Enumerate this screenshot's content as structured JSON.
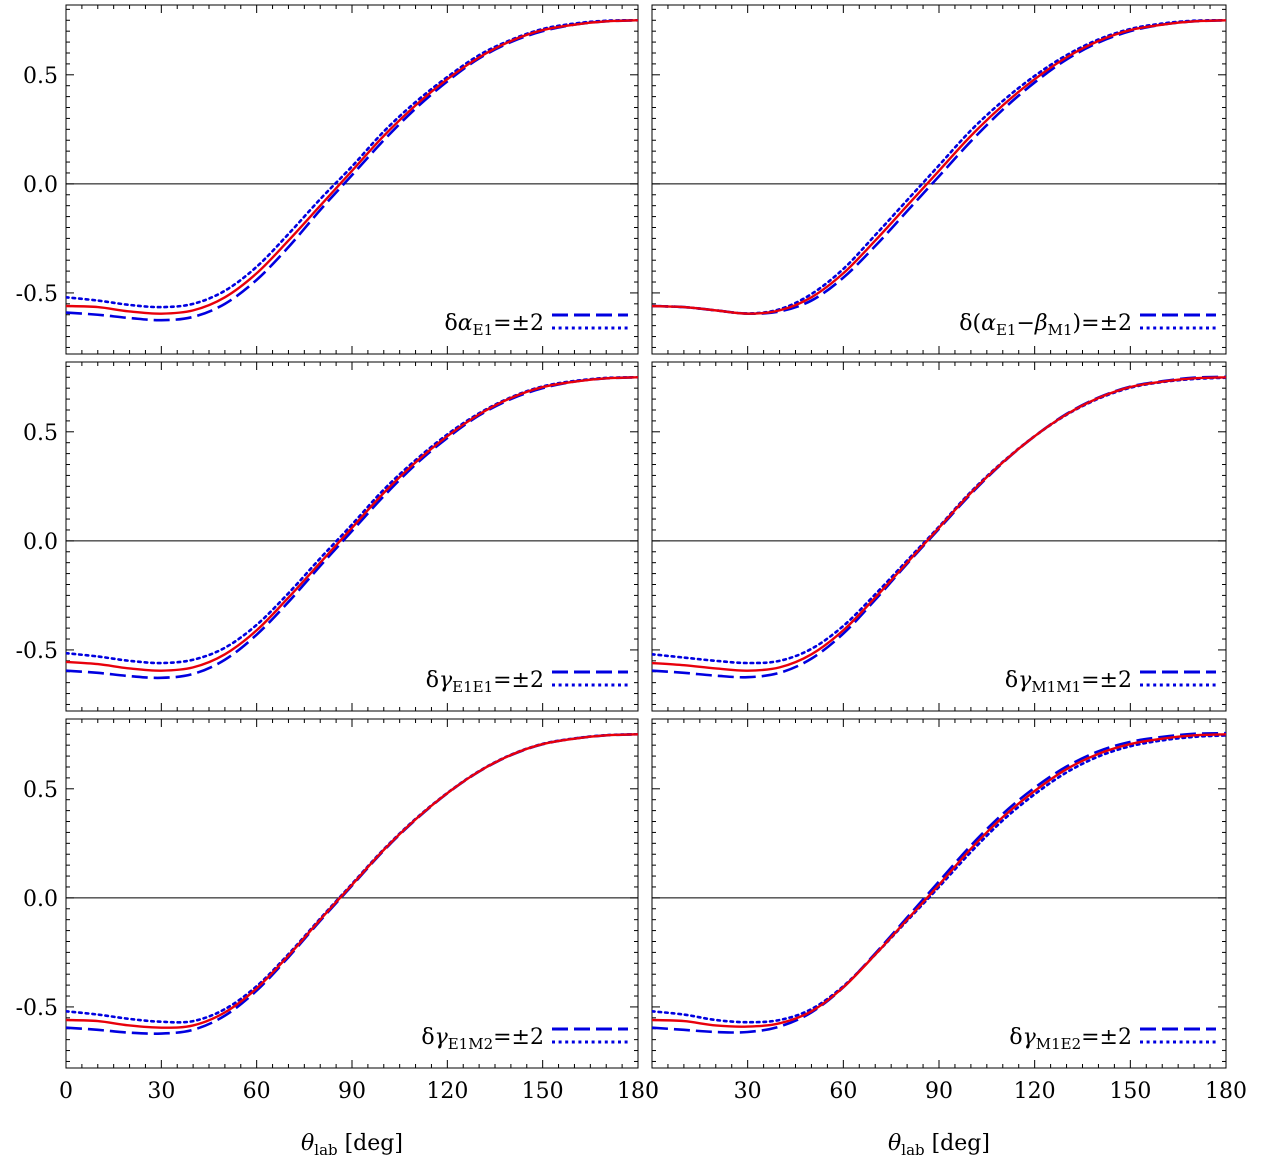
{
  "colors": {
    "central": "#e8000b",
    "variation": "#0000e0",
    "axis": "#000000"
  },
  "chart_data": {
    "type": "line",
    "layout": "3x2 grid of panels sharing axes",
    "xlabel": {
      "symbol": "θ",
      "sub": "lab",
      "unit": "[deg]"
    },
    "xlim": [
      0,
      180
    ],
    "ylim": [
      -0.78,
      0.82
    ],
    "xticks": [
      0,
      30,
      60,
      90,
      120,
      150,
      180
    ],
    "xtick_labels_left": [
      "0",
      "30",
      "60",
      "90",
      "120",
      "150",
      "180"
    ],
    "xtick_labels_right": [
      "0",
      "30",
      "60",
      "90",
      "120",
      "150",
      "180"
    ],
    "yticks": [
      -0.5,
      0.0,
      0.5
    ],
    "ytick_labels": [
      "-0.5",
      "0.0",
      "0.5"
    ],
    "zero_line": true,
    "line_styles": {
      "central": "solid",
      "plus": "dashed",
      "minus": "dotted"
    },
    "x": [
      0,
      10,
      20,
      30,
      40,
      50,
      60,
      70,
      80,
      90,
      100,
      110,
      120,
      130,
      140,
      150,
      160,
      170,
      180
    ],
    "panels": [
      {
        "legend": {
          "prefix": "δ",
          "symbol": "α",
          "sub": "E1",
          "suffix": "",
          "value": "=±2"
        },
        "series": [
          {
            "style": "central",
            "values": [
              -0.56,
              -0.565,
              -0.585,
              -0.595,
              -0.58,
              -0.52,
              -0.41,
              -0.26,
              -0.1,
              0.06,
              0.22,
              0.36,
              0.48,
              0.58,
              0.655,
              0.705,
              0.73,
              0.745,
              0.75
            ]
          },
          {
            "style": "dashed",
            "values": [
              -0.59,
              -0.6,
              -0.615,
              -0.625,
              -0.61,
              -0.55,
              -0.44,
              -0.29,
              -0.12,
              0.04,
              0.2,
              0.345,
              0.47,
              0.575,
              0.65,
              0.7,
              0.73,
              0.745,
              0.75
            ]
          },
          {
            "style": "dotted",
            "values": [
              -0.52,
              -0.535,
              -0.555,
              -0.565,
              -0.55,
              -0.49,
              -0.38,
              -0.23,
              -0.07,
              0.08,
              0.24,
              0.375,
              0.49,
              0.59,
              0.66,
              0.71,
              0.735,
              0.748,
              0.75
            ]
          }
        ]
      },
      {
        "legend": {
          "prefix": "δ(",
          "symbol": "α",
          "sub": "E1",
          "minus_symbol": "β",
          "minus_sub": "M1",
          "suffix": ")",
          "value": "=±2"
        },
        "series": [
          {
            "style": "central",
            "values": [
              -0.56,
              -0.565,
              -0.58,
              -0.595,
              -0.58,
              -0.52,
              -0.41,
              -0.26,
              -0.1,
              0.06,
              0.22,
              0.36,
              0.48,
              0.58,
              0.655,
              0.705,
              0.73,
              0.745,
              0.75
            ]
          },
          {
            "style": "dashed",
            "values": [
              -0.56,
              -0.565,
              -0.58,
              -0.595,
              -0.585,
              -0.535,
              -0.43,
              -0.285,
              -0.125,
              0.035,
              0.195,
              0.34,
              0.465,
              0.57,
              0.648,
              0.7,
              0.73,
              0.745,
              0.75
            ]
          },
          {
            "style": "dotted",
            "values": [
              -0.56,
              -0.565,
              -0.58,
              -0.594,
              -0.575,
              -0.505,
              -0.39,
              -0.235,
              -0.075,
              0.085,
              0.245,
              0.38,
              0.495,
              0.59,
              0.662,
              0.71,
              0.735,
              0.748,
              0.75
            ]
          }
        ]
      },
      {
        "legend": {
          "prefix": "δ",
          "symbol": "γ",
          "sub": "E1E1",
          "suffix": "",
          "value": "=±2"
        },
        "series": [
          {
            "style": "central",
            "values": [
              -0.555,
              -0.565,
              -0.585,
              -0.595,
              -0.58,
              -0.52,
              -0.41,
              -0.26,
              -0.1,
              0.06,
              0.22,
              0.36,
              0.48,
              0.58,
              0.655,
              0.705,
              0.73,
              0.745,
              0.75
            ]
          },
          {
            "style": "dashed",
            "values": [
              -0.595,
              -0.605,
              -0.62,
              -0.628,
              -0.61,
              -0.545,
              -0.43,
              -0.28,
              -0.115,
              0.045,
              0.205,
              0.35,
              0.472,
              0.575,
              0.65,
              0.7,
              0.73,
              0.745,
              0.75
            ]
          },
          {
            "style": "dotted",
            "values": [
              -0.515,
              -0.53,
              -0.55,
              -0.56,
              -0.545,
              -0.49,
              -0.385,
              -0.24,
              -0.08,
              0.075,
              0.235,
              0.37,
              0.488,
              0.585,
              0.658,
              0.708,
              0.733,
              0.747,
              0.75
            ]
          }
        ]
      },
      {
        "legend": {
          "prefix": "δ",
          "symbol": "γ",
          "sub": "M1M1",
          "suffix": "",
          "value": "=±2"
        },
        "series": [
          {
            "style": "central",
            "values": [
              -0.56,
              -0.57,
              -0.585,
              -0.595,
              -0.58,
              -0.52,
              -0.41,
              -0.26,
              -0.1,
              0.06,
              0.22,
              0.36,
              0.48,
              0.58,
              0.655,
              0.705,
              0.73,
              0.745,
              0.75
            ]
          },
          {
            "style": "dashed",
            "values": [
              -0.595,
              -0.605,
              -0.618,
              -0.625,
              -0.605,
              -0.54,
              -0.425,
              -0.27,
              -0.105,
              0.055,
              0.215,
              0.358,
              0.48,
              0.582,
              0.657,
              0.707,
              0.732,
              0.748,
              0.752
            ]
          },
          {
            "style": "dotted",
            "values": [
              -0.52,
              -0.535,
              -0.55,
              -0.56,
              -0.55,
              -0.495,
              -0.39,
              -0.245,
              -0.09,
              0.065,
              0.225,
              0.362,
              0.48,
              0.578,
              0.652,
              0.702,
              0.728,
              0.742,
              0.748
            ]
          }
        ]
      },
      {
        "legend": {
          "prefix": "δ",
          "symbol": "γ",
          "sub": "E1M2",
          "suffix": "",
          "value": "=±2"
        },
        "series": [
          {
            "style": "central",
            "values": [
              -0.56,
              -0.565,
              -0.585,
              -0.595,
              -0.585,
              -0.525,
              -0.415,
              -0.265,
              -0.1,
              0.06,
              0.22,
              0.36,
              0.48,
              0.58,
              0.655,
              0.705,
              0.73,
              0.745,
              0.75
            ]
          },
          {
            "style": "dashed",
            "values": [
              -0.595,
              -0.605,
              -0.618,
              -0.622,
              -0.605,
              -0.54,
              -0.425,
              -0.272,
              -0.105,
              0.056,
              0.217,
              0.358,
              0.479,
              0.579,
              0.654,
              0.704,
              0.73,
              0.745,
              0.75
            ]
          },
          {
            "style": "dotted",
            "values": [
              -0.52,
              -0.535,
              -0.555,
              -0.568,
              -0.565,
              -0.51,
              -0.405,
              -0.258,
              -0.095,
              0.064,
              0.223,
              0.362,
              0.481,
              0.581,
              0.656,
              0.706,
              0.731,
              0.746,
              0.75
            ]
          }
        ]
      },
      {
        "legend": {
          "prefix": "δ",
          "symbol": "γ",
          "sub": "M1E2",
          "suffix": "",
          "value": "=±2"
        },
        "series": [
          {
            "style": "central",
            "values": [
              -0.56,
              -0.565,
              -0.585,
              -0.59,
              -0.575,
              -0.52,
              -0.41,
              -0.26,
              -0.1,
              0.06,
              0.225,
              0.37,
              0.49,
              0.59,
              0.66,
              0.705,
              0.73,
              0.745,
              0.75
            ]
          },
          {
            "style": "dashed",
            "values": [
              -0.595,
              -0.605,
              -0.615,
              -0.615,
              -0.59,
              -0.525,
              -0.41,
              -0.255,
              -0.09,
              0.075,
              0.24,
              0.385,
              0.505,
              0.602,
              0.672,
              0.715,
              0.738,
              0.752,
              0.755
            ]
          },
          {
            "style": "dotted",
            "values": [
              -0.52,
              -0.535,
              -0.56,
              -0.57,
              -0.56,
              -0.51,
              -0.405,
              -0.26,
              -0.105,
              0.05,
              0.21,
              0.355,
              0.475,
              0.575,
              0.648,
              0.695,
              0.722,
              0.738,
              0.745
            ]
          }
        ]
      }
    ]
  }
}
